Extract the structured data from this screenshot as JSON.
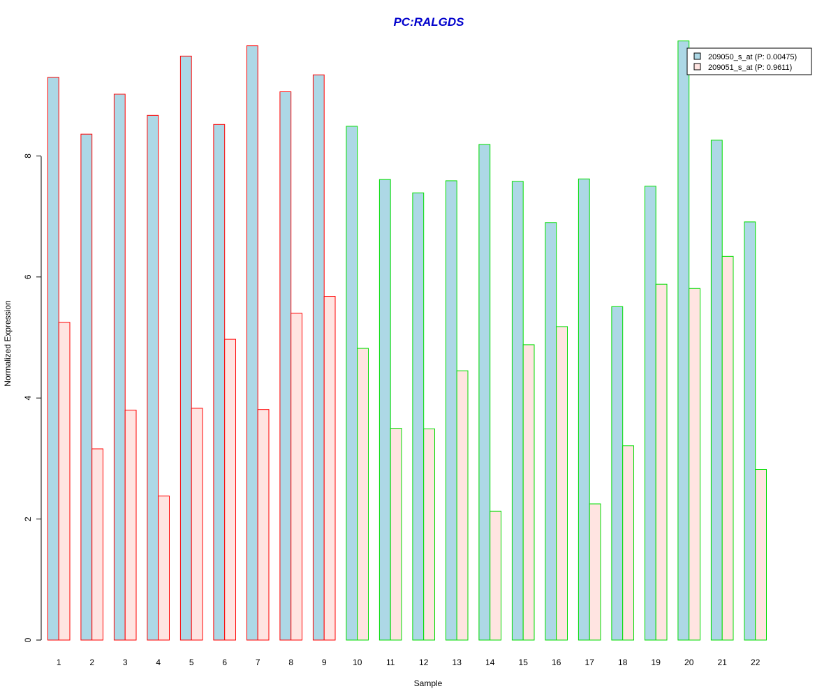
{
  "chart_data": {
    "type": "bar",
    "title": "PC:RALGDS",
    "xlabel": "Sample",
    "ylabel": "Normalized Expression",
    "ylim": [
      0,
      10
    ],
    "yticks": [
      "0",
      "2",
      "4",
      "6",
      "8"
    ],
    "categories": [
      "1",
      "2",
      "3",
      "4",
      "5",
      "6",
      "7",
      "8",
      "9",
      "10",
      "11",
      "12",
      "13",
      "14",
      "15",
      "16",
      "17",
      "18",
      "19",
      "20",
      "21",
      "22"
    ],
    "group_edge_colors": [
      "#ff0000",
      "#ff0000",
      "#ff0000",
      "#ff0000",
      "#ff0000",
      "#ff0000",
      "#ff0000",
      "#ff0000",
      "#ff0000",
      "#00dd00",
      "#00dd00",
      "#00dd00",
      "#00dd00",
      "#00dd00",
      "#00dd00",
      "#00dd00",
      "#00dd00",
      "#00dd00",
      "#00dd00",
      "#00dd00",
      "#00dd00",
      "#00dd00"
    ],
    "series": [
      {
        "name": "209050_s_at (P: 0.00475)",
        "fill": "#add8e6",
        "values": [
          9.3,
          8.36,
          9.02,
          8.67,
          9.65,
          8.52,
          9.82,
          9.06,
          9.34,
          8.49,
          7.61,
          7.39,
          7.59,
          8.19,
          7.58,
          6.9,
          7.62,
          5.51,
          7.5,
          9.9,
          8.26,
          6.91
        ]
      },
      {
        "name": "209051_s_at (P: 0.9611)",
        "fill": "#ffe4e1",
        "values": [
          5.25,
          3.16,
          3.8,
          2.38,
          3.83,
          4.97,
          3.81,
          5.4,
          5.68,
          4.82,
          3.5,
          3.49,
          4.45,
          2.13,
          4.88,
          5.18,
          2.25,
          3.21,
          5.88,
          5.81,
          6.34,
          2.82
        ]
      }
    ],
    "legend_position": "top-right",
    "title_color": "#0000cc"
  }
}
